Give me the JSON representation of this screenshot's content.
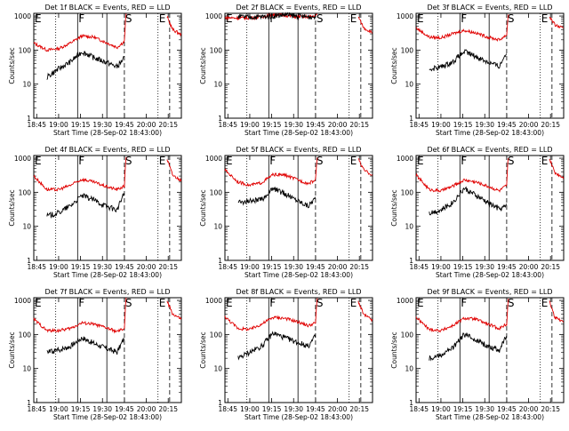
{
  "panel_titles": [
    "Det 1f BLACK = Events, RED = LLD",
    "Det 2f BLACK = Events, RED = LLD",
    "Det 3f BLACK = Events, RED = LLD",
    "Det 4f BLACK = Events, RED = LLD",
    "Det 5f BLACK = Events, RED = LLD",
    "Det 6f BLACK = Events, RED = LLD",
    "Det 7f BLACK = Events, RED = LLD",
    "Det 8f BLACK = Events, RED = LLD",
    "Det 9f BLACK = Events, RED = LLD"
  ],
  "ylabel": "Counts/sec",
  "xlabel": "Start Time (28-Sep-02 18:43:00)",
  "x_tick_labels": [
    "18:45",
    "19:00",
    "19:15",
    "19:30",
    "19:45",
    "20:00",
    "20:15"
  ],
  "y_tick_labels": [
    "1",
    "10",
    "100",
    "1000"
  ],
  "interval_letters": [
    "E",
    "F",
    "S",
    "E"
  ],
  "colors": {
    "events": "#000000",
    "lld": "#e00000"
  },
  "chart_data": {
    "type": "line",
    "layout": "3x3 grid",
    "scale": "log-y",
    "xlim": [
      "18:43",
      "20:24"
    ],
    "ylim": [
      1,
      1200
    ],
    "markers": {
      "dotted": [
        "18:58",
        "20:08"
      ],
      "solid": [
        "19:13",
        "19:33"
      ],
      "dashed": [
        "19:45",
        "20:16"
      ]
    },
    "series_events_times": [
      "18:52",
      "19:00",
      "19:08",
      "19:16",
      "19:24",
      "19:32",
      "19:40",
      "19:45"
    ],
    "series_lld_times": [
      "18:43",
      "18:52",
      "19:00",
      "19:08",
      "19:16",
      "19:24",
      "19:32",
      "19:40",
      "19:45",
      "19:46",
      "20:14",
      "20:18",
      "20:24"
    ],
    "panels": [
      {
        "events": [
          16,
          28,
          45,
          90,
          60,
          45,
          32,
          60
        ],
        "lld": [
          160,
          100,
          110,
          160,
          260,
          240,
          170,
          120,
          180,
          1100,
          1000,
          400,
          280
        ]
      },
      {
        "events": [
          950,
          930,
          950,
          1000,
          1100,
          1000,
          950,
          950
        ],
        "lld": [
          900,
          870,
          880,
          940,
          1100,
          1050,
          950,
          950,
          1000,
          1100,
          1000,
          450,
          320
        ]
      },
      {
        "events": [
          28,
          32,
          45,
          90,
          65,
          45,
          33,
          90
        ],
        "lld": [
          450,
          240,
          230,
          300,
          380,
          320,
          240,
          200,
          280,
          1100,
          1000,
          550,
          420
        ]
      },
      {
        "events": [
          20,
          25,
          40,
          80,
          60,
          40,
          30,
          100
        ],
        "lld": [
          300,
          120,
          120,
          160,
          240,
          200,
          150,
          120,
          150,
          1100,
          1000,
          320,
          220
        ]
      },
      {
        "events": [
          50,
          55,
          60,
          130,
          90,
          60,
          40,
          70
        ],
        "lld": [
          450,
          200,
          160,
          190,
          330,
          320,
          240,
          180,
          230,
          1100,
          1000,
          450,
          320
        ]
      },
      {
        "events": [
          25,
          30,
          50,
          130,
          80,
          50,
          32,
          40
        ],
        "lld": [
          320,
          120,
          110,
          150,
          230,
          200,
          150,
          110,
          160,
          1100,
          1000,
          380,
          270
        ]
      },
      {
        "events": [
          30,
          35,
          45,
          80,
          55,
          40,
          30,
          80
        ],
        "lld": [
          280,
          130,
          130,
          150,
          220,
          200,
          160,
          120,
          150,
          1100,
          1000,
          400,
          280
        ]
      },
      {
        "events": [
          20,
          30,
          45,
          110,
          80,
          60,
          45,
          90
        ],
        "lld": [
          330,
          150,
          140,
          200,
          320,
          300,
          240,
          180,
          220,
          1100,
          1000,
          380,
          260
        ]
      },
      {
        "events": [
          20,
          25,
          40,
          100,
          70,
          45,
          35,
          90
        ],
        "lld": [
          320,
          140,
          130,
          180,
          300,
          280,
          200,
          150,
          200,
          1100,
          1000,
          320,
          240
        ]
      }
    ]
  }
}
